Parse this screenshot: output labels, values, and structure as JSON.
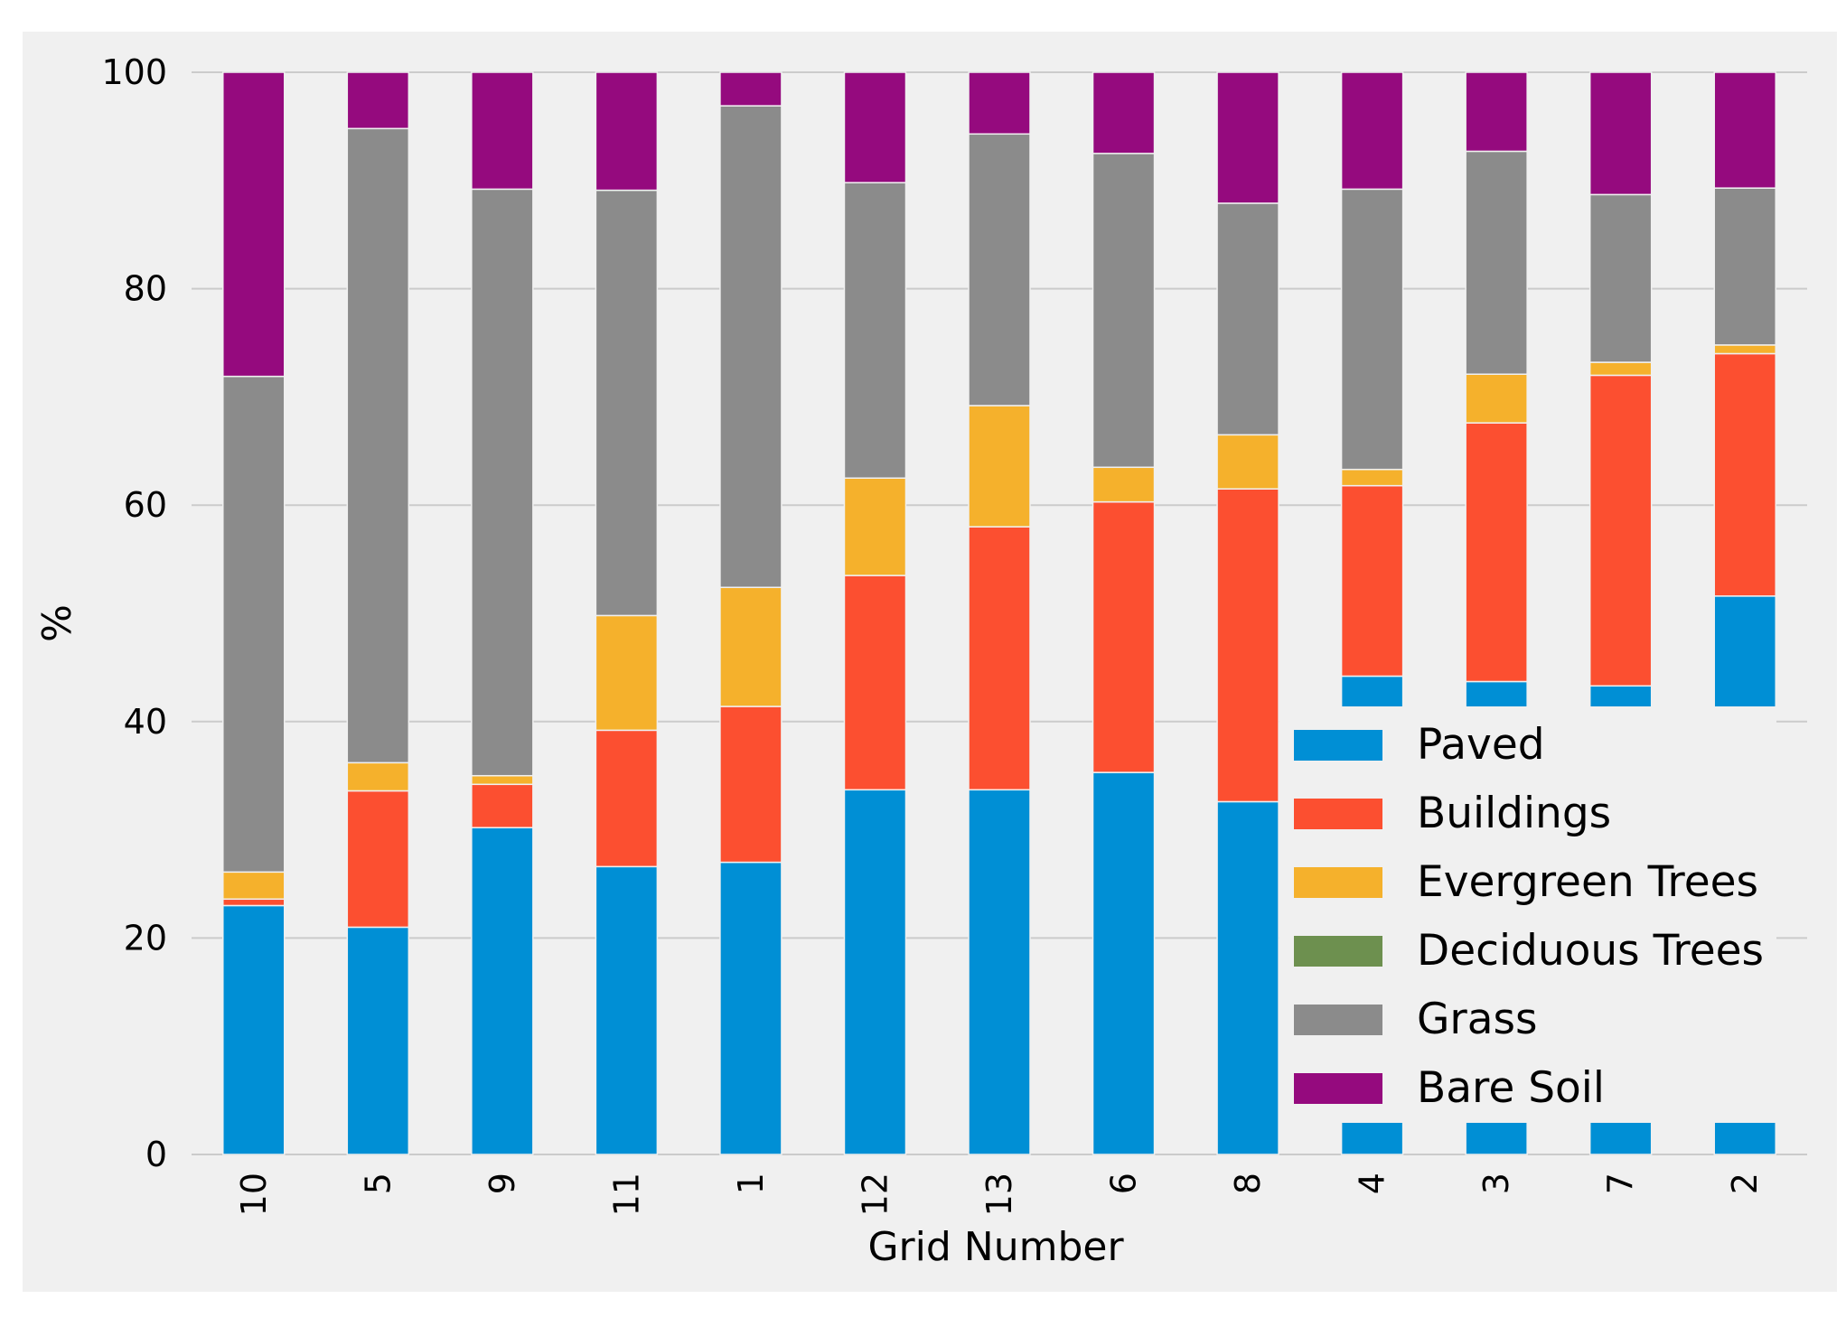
{
  "chart_data": {
    "type": "bar",
    "stacked": true,
    "title": "",
    "xlabel": "Grid Number",
    "ylabel": "%",
    "ylim": [
      0,
      100
    ],
    "yticks": [
      0,
      20,
      40,
      60,
      80,
      100
    ],
    "grid": true,
    "legend_position": "bottom-right",
    "categories": [
      "10",
      "5",
      "9",
      "11",
      "1",
      "12",
      "13",
      "6",
      "8",
      "4",
      "3",
      "7",
      "2"
    ],
    "series": [
      {
        "name": "Paved",
        "color": "#008fd5",
        "values": [
          23.0,
          21.0,
          30.2,
          26.6,
          27.0,
          33.7,
          33.7,
          35.3,
          32.6,
          44.2,
          43.7,
          43.3,
          51.6
        ]
      },
      {
        "name": "Buildings",
        "color": "#fc4f30",
        "values": [
          0.6,
          12.6,
          4.0,
          12.6,
          14.4,
          19.8,
          24.3,
          25.0,
          28.9,
          17.6,
          23.9,
          28.7,
          22.4
        ]
      },
      {
        "name": "Evergreen Trees",
        "color": "#f5b12c",
        "values": [
          2.5,
          2.6,
          0.8,
          10.6,
          11.0,
          9.0,
          11.2,
          3.2,
          5.0,
          1.5,
          4.5,
          1.2,
          0.8
        ]
      },
      {
        "name": "Deciduous Trees",
        "color": "#6d904f",
        "values": [
          0,
          0,
          0,
          0,
          0,
          0,
          0,
          0,
          0,
          0,
          0,
          0,
          0
        ]
      },
      {
        "name": "Grass",
        "color": "#8b8b8b",
        "values": [
          45.8,
          58.6,
          54.2,
          39.3,
          44.5,
          27.3,
          25.1,
          29.0,
          21.4,
          25.9,
          20.6,
          15.5,
          14.5
        ]
      },
      {
        "name": "Bare Soil",
        "color": "#950a7e",
        "values": [
          28.1,
          5.2,
          10.8,
          10.9,
          3.1,
          10.2,
          5.7,
          7.5,
          12.1,
          10.8,
          7.3,
          11.3,
          10.7
        ]
      }
    ]
  }
}
